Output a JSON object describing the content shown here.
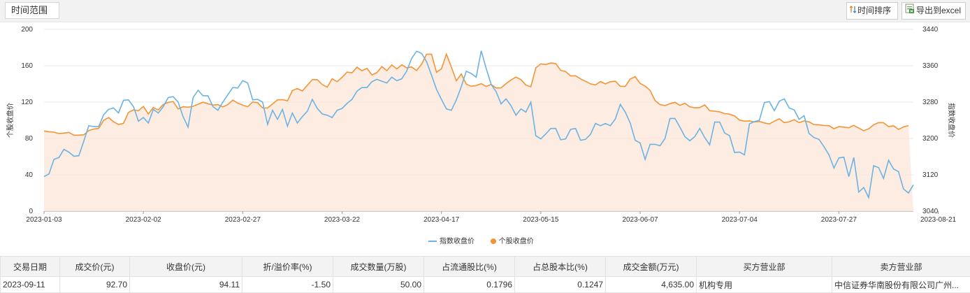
{
  "toolbar": {
    "range_label": "时间范围",
    "sort_label": "时间排序",
    "export_label": "导出到excel"
  },
  "chart_data": {
    "type": "area",
    "ylabel_left": "个股收盘价",
    "ylabel_right": "指数收盘价",
    "left_axis": {
      "ticks": [
        0,
        40,
        80,
        120,
        160,
        200
      ],
      "ylim": [
        0,
        200
      ]
    },
    "right_axis": {
      "ticks": [
        3040,
        3120,
        3200,
        3280,
        3360,
        3440
      ],
      "ylim": [
        3040,
        3440
      ]
    },
    "x_tick_labels": [
      "2023-01-03",
      "2023-02-02",
      "2023-02-27",
      "2023-03-22",
      "2023-04-17",
      "2023-05-15",
      "2023-06-07",
      "2023-07-04",
      "2023-07-27",
      "2023-08-21"
    ],
    "x_tick_index": [
      0,
      20,
      40,
      60,
      80,
      100,
      120,
      140,
      160,
      180
    ],
    "series": [
      {
        "name": "指数收盘价",
        "axis": "right",
        "color": "#6cb3e3",
        "values": [
          3116,
          3122,
          3154,
          3158,
          3176,
          3170,
          3161,
          3162,
          3194,
          3228,
          3226,
          3226,
          3252,
          3264,
          3267,
          3256,
          3284,
          3285,
          3270,
          3238,
          3246,
          3234,
          3264,
          3256,
          3270,
          3290,
          3292,
          3280,
          3248,
          3225,
          3290,
          3306,
          3294,
          3294,
          3270,
          3262,
          3280,
          3296,
          3312,
          3311,
          3327,
          3322,
          3285,
          3286,
          3280,
          3231,
          3262,
          3242,
          3264,
          3227,
          3256,
          3234,
          3248,
          3260,
          3286,
          3266,
          3254,
          3251,
          3246,
          3262,
          3266,
          3277,
          3286,
          3304,
          3312,
          3312,
          3325,
          3330,
          3326,
          3322,
          3335,
          3327,
          3331,
          3348,
          3376,
          3392,
          3387,
          3369,
          3339,
          3308,
          3286,
          3265,
          3262,
          3285,
          3314,
          3348,
          3343,
          3335,
          3393,
          3354,
          3319,
          3303,
          3276,
          3287,
          3272,
          3251,
          3265,
          3258,
          3280,
          3206,
          3199,
          3210,
          3222,
          3222,
          3197,
          3199,
          3220,
          3222,
          3196,
          3198,
          3209,
          3233,
          3228,
          3233,
          3228,
          3243,
          3275,
          3258,
          3234,
          3196,
          3190,
          3154,
          3187,
          3187,
          3184,
          3200,
          3244,
          3244,
          3225,
          3204,
          3195,
          3204,
          3222,
          3202,
          3186,
          3236,
          3236,
          3212,
          3206,
          3169,
          3170,
          3164,
          3232,
          3237,
          3240,
          3279,
          3281,
          3261,
          3282,
          3287,
          3267,
          3263,
          3242,
          3250,
          3211,
          3202,
          3198,
          3182,
          3164,
          3135,
          3157,
          3159,
          3116,
          3158,
          3082,
          3092,
          3070,
          3140,
          3136,
          3112,
          3152,
          3133,
          3127,
          3089,
          3080,
          3098
        ]
      },
      {
        "name": "个股收盘价",
        "axis": "left",
        "color": "#f39435",
        "values": [
          88.2,
          87.4,
          86.9,
          85.4,
          85.9,
          86.7,
          83.6,
          83.7,
          84.0,
          88.7,
          90.4,
          91.1,
          100.0,
          103.0,
          98.4,
          95.4,
          96.6,
          108.7,
          111.5,
          110.5,
          115.2,
          106.9,
          114.0,
          111.4,
          117.4,
          119.8,
          120.6,
          112.4,
          114.9,
          114.4,
          115.4,
          117.6,
          119.9,
          118.2,
          116.7,
          117.2,
          114.7,
          117.2,
          122.2,
          118.9,
          116.6,
          114.9,
          120.2,
          119.3,
          113.6,
          113.5,
          118.0,
          122.5,
          122.7,
          121.4,
          132.7,
          134.9,
          132.2,
          138.5,
          144.7,
          144.7,
          139.3,
          136.5,
          145.7,
          142.5,
          147.2,
          153.0,
          152.3,
          158.5,
          154.5,
          157.1,
          149.9,
          152.4,
          159.1,
          154.6,
          160.9,
          156.5,
          161.1,
          157.8,
          158.7,
          154.7,
          161.8,
          172.7,
          172.8,
          152.8,
          156.6,
          172.7,
          158.5,
          143.4,
          150.9,
          139.8,
          137.5,
          138.2,
          140.3,
          137.2,
          139.4,
          135.5,
          135.7,
          140.3,
          144.4,
          147.5,
          144.8,
          138.7,
          136.9,
          157.6,
          162.1,
          161.3,
          163.1,
          162.4,
          154.9,
          153.6,
          148.8,
          149.0,
          145.5,
          142.9,
          140.1,
          138.9,
          142.6,
          140.0,
          142.5,
          143.0,
          137.4,
          137.2,
          145.4,
          148.0,
          140.5,
          137.6,
          132.9,
          121.6,
          117.2,
          116.2,
          118.2,
          119.8,
          116.4,
          118.7,
          114.8,
          113.7,
          114.0,
          116.9,
          110.5,
          110.0,
          109.3,
          107.3,
          106.8,
          104.8,
          100.2,
          99.0,
          99.4,
          98.1,
          98.8,
          97.1,
          96.0,
          99.0,
          101.7,
          97.4,
          98.4,
          100.7,
          97.5,
          99.3,
          98.2,
          95.2,
          95.1,
          94.2,
          94.1,
          90.7,
          93.0,
          92.5,
          91.8,
          94.4,
          91.5,
          88.5,
          90.6,
          95.0,
          97.5,
          97.3,
          93.1,
          93.9,
          89.9,
          92.7,
          94.1
        ]
      }
    ]
  },
  "table": {
    "headers": [
      "交易日期",
      "成交价(元)",
      "收盘价(元)",
      "折/溢价率(%)",
      "成交数量(万股)",
      "占流通股比(%)",
      "占总股本比(%)",
      "成交金额(万元)",
      "买方营业部",
      "卖方营业部"
    ],
    "rows": [
      [
        "2023-09-11",
        "92.70",
        "94.11",
        "-1.50",
        "50.00",
        "0.1796",
        "0.1247",
        "4,635.00",
        "机构专用",
        "中信证券华南股份有限公司广州..."
      ]
    ]
  }
}
